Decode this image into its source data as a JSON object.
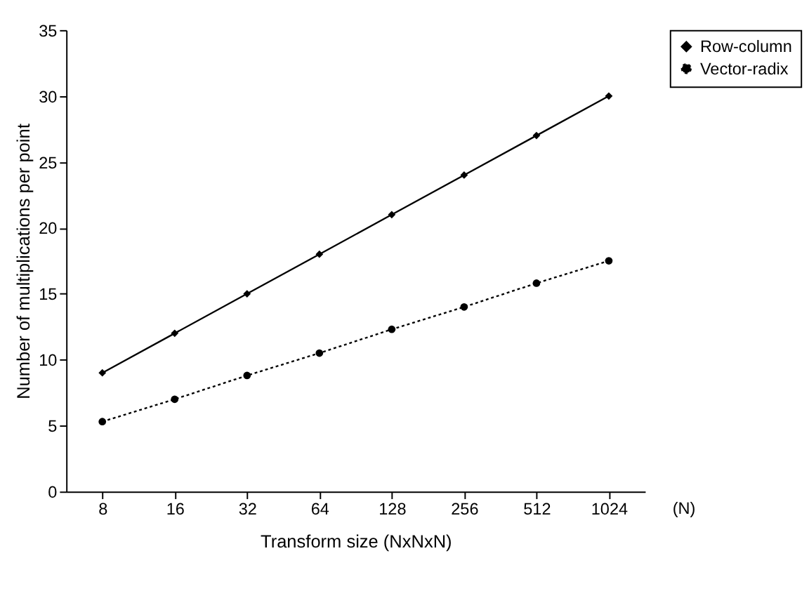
{
  "chart_data": {
    "type": "line",
    "xlabel": "Transform size (NxNxN)",
    "ylabel": "Number of multiplications per point",
    "categories": [
      "8",
      "16",
      "32",
      "64",
      "128",
      "256",
      "512",
      "1024"
    ],
    "series": [
      {
        "name": "Row-column",
        "color": "#000000",
        "marker": "diamond",
        "line_style": "solid",
        "values": [
          9,
          12,
          15,
          18,
          21,
          24,
          27,
          30
        ]
      },
      {
        "name": "Vector-radix",
        "color": "#000000",
        "marker": "circle",
        "line_style": "dotted",
        "values": [
          5.3,
          7,
          8.8,
          10.5,
          12.3,
          14,
          15.8,
          17.5
        ]
      }
    ],
    "ylim": [
      0,
      35
    ],
    "yticks": [
      0,
      5,
      10,
      15,
      20,
      25,
      30,
      35
    ],
    "grid": false,
    "legend": "right",
    "annotations": [
      "(N)"
    ]
  }
}
